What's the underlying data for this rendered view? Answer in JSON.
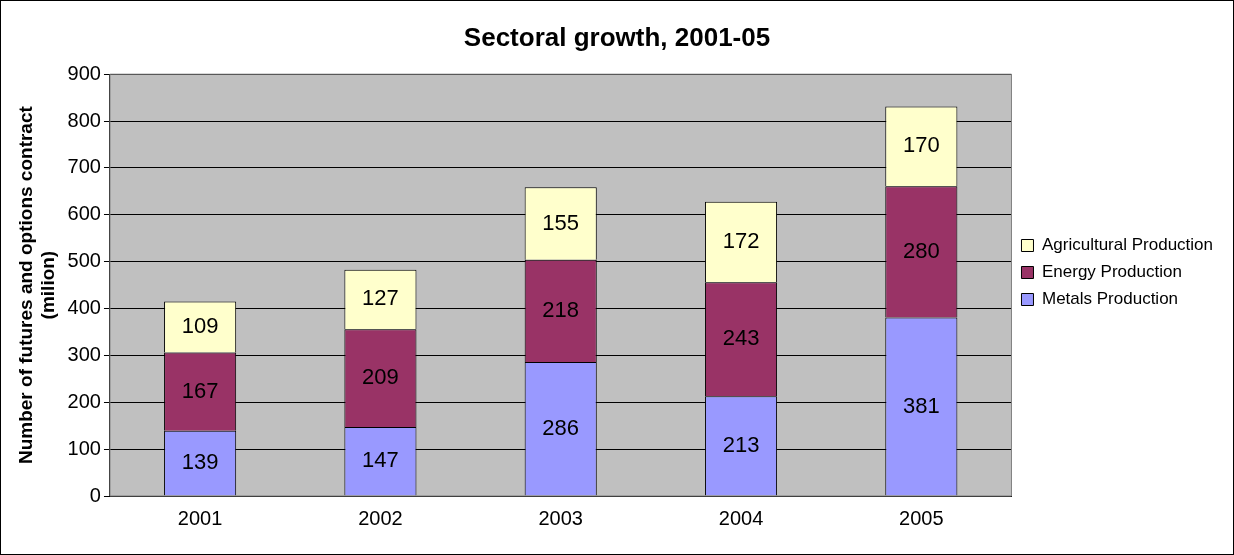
{
  "chart_data": {
    "type": "bar",
    "title": "Sectoral growth, 2001-05",
    "ylabel": "Number of futures and options contract\n(milion)",
    "categories": [
      "2001",
      "2002",
      "2003",
      "2004",
      "2005"
    ],
    "series": [
      {
        "name": "Metals Production",
        "color": "#9999ff",
        "values": [
          139,
          147,
          286,
          213,
          381
        ]
      },
      {
        "name": "Energy Production",
        "color": "#993366",
        "values": [
          167,
          209,
          218,
          243,
          280
        ]
      },
      {
        "name": "Agricultural Production",
        "color": "#ffffcc",
        "values": [
          109,
          127,
          155,
          172,
          170
        ]
      }
    ],
    "stacked": true,
    "ylim": [
      0,
      900
    ],
    "yticks": [
      0,
      100,
      200,
      300,
      400,
      500,
      600,
      700,
      800,
      900
    ],
    "grid": "y",
    "legend": "right",
    "data_labels": true
  }
}
